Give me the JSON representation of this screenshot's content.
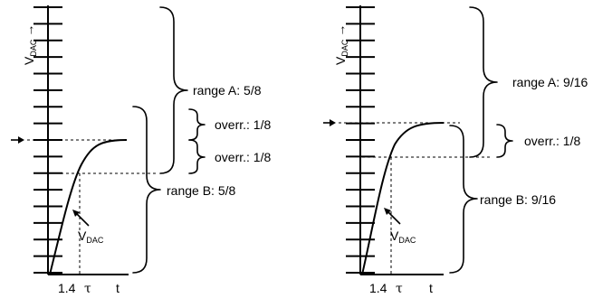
{
  "left": {
    "axis_label": "V",
    "axis_label_sub": "DAC",
    "axis_arrow": "→",
    "range_a": "range A: 5/8",
    "overrange_upper": "overr.: 1/8",
    "overrange_lower": "overr.: 1/8",
    "range_b": "range B: 5/8",
    "vdac_label": "V",
    "vdac_sub": "DAC",
    "time_label": "1.4",
    "tau_symbol": "τ",
    "t_label": "t"
  },
  "right": {
    "axis_label": "V",
    "axis_label_sub": "DAC",
    "axis_arrow": "→",
    "range_a": "range A: 9/16",
    "overrange": "overr.: 1/8",
    "range_b": "range B: 9/16",
    "vdac_label": "V",
    "vdac_sub": "DAC",
    "time_label": "1.4",
    "tau_symbol": "τ",
    "t_label": "t"
  },
  "icons": {
    "target_arrow": "right-arrow-icon",
    "vdac_pointer": "diagonal-arrow-icon"
  }
}
